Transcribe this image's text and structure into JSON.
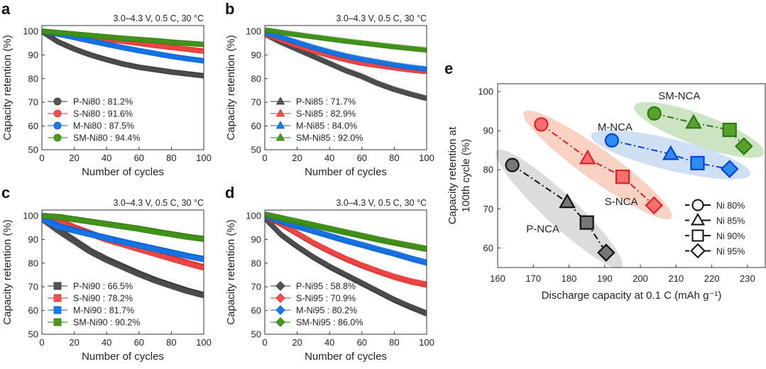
{
  "figure": {
    "condition_label": "3.0–4.3 V, 0.5 C, 30 °C",
    "colors": {
      "P": "#555555",
      "S": "#f05050",
      "M": "#1a7be8",
      "SM": "#4a9a1e",
      "P_fill_e": "#777777",
      "S_fill_e": "#f77070",
      "M_fill_e": "#2b8ef0",
      "SM_fill_e": "#5aa02a",
      "P_halo": "#dcdcdc",
      "S_halo": "#f9d2c4",
      "M_halo": "#cfe0f5",
      "SM_halo": "#cde4c2"
    }
  },
  "chart_data": [
    {
      "panel": "a",
      "type": "line",
      "title": "3.0–4.3 V, 0.5 C, 30 °C",
      "xlabel": "Number of cycles",
      "ylabel": "Capacity retention (%)",
      "xlim": [
        0,
        100
      ],
      "ylim": [
        50,
        100
      ],
      "xticks": [
        "0",
        "20",
        "40",
        "60",
        "80",
        "100"
      ],
      "yticks": [
        "50",
        "60",
        "70",
        "80",
        "90",
        "100"
      ],
      "marker": "circle",
      "legend_position": "bottom-left",
      "series": [
        {
          "name": "P-Ni80 : 81.2%",
          "key": "P",
          "x": [
            0,
            10,
            20,
            30,
            40,
            50,
            60,
            70,
            80,
            90,
            100
          ],
          "y": [
            100,
            95.5,
            92.5,
            90.0,
            88.0,
            86.2,
            84.8,
            83.8,
            82.8,
            82.0,
            81.2
          ]
        },
        {
          "name": "S-Ni80 : 91.6%",
          "key": "S",
          "x": [
            0,
            10,
            20,
            30,
            40,
            50,
            60,
            70,
            80,
            90,
            100
          ],
          "y": [
            100,
            99.2,
            98.4,
            97.5,
            96.6,
            95.8,
            94.9,
            94.0,
            93.2,
            92.4,
            91.6
          ]
        },
        {
          "name": "M-Ni80 : 87.5%",
          "key": "M",
          "x": [
            0,
            10,
            20,
            30,
            40,
            50,
            60,
            70,
            80,
            90,
            100
          ],
          "y": [
            100,
            98.8,
            97.4,
            95.9,
            94.5,
            93.1,
            91.8,
            90.6,
            89.4,
            88.4,
            87.5
          ]
        },
        {
          "name": "SM-Ni80 : 94.4%",
          "key": "SM",
          "x": [
            0,
            10,
            20,
            30,
            40,
            50,
            60,
            70,
            80,
            90,
            100
          ],
          "y": [
            100,
            99.4,
            98.8,
            98.2,
            97.6,
            97.0,
            96.5,
            96.0,
            95.4,
            94.9,
            94.4
          ]
        }
      ]
    },
    {
      "panel": "b",
      "type": "line",
      "title": "3.0–4.3 V, 0.5 C, 30 °C",
      "xlabel": "Number of cycles",
      "ylabel": "Capacity retention (%)",
      "xlim": [
        0,
        100
      ],
      "ylim": [
        50,
        100
      ],
      "xticks": [
        "0",
        "20",
        "40",
        "60",
        "80",
        "100"
      ],
      "yticks": [
        "50",
        "60",
        "70",
        "80",
        "90",
        "100"
      ],
      "marker": "triangle",
      "legend_position": "bottom-left",
      "series": [
        {
          "name": "P-Ni85 : 71.7%",
          "key": "P",
          "x": [
            0,
            10,
            20,
            30,
            40,
            50,
            60,
            70,
            80,
            90,
            100
          ],
          "y": [
            99,
            95.5,
            92.5,
            89.5,
            86.5,
            83.5,
            81.0,
            78.0,
            75.5,
            73.5,
            71.7
          ]
        },
        {
          "name": "S-Ni85 : 82.9%",
          "key": "S",
          "x": [
            0,
            10,
            20,
            30,
            40,
            50,
            60,
            70,
            80,
            90,
            100
          ],
          "y": [
            99,
            96.5,
            94.0,
            91.8,
            89.8,
            88.0,
            86.5,
            85.5,
            84.5,
            83.6,
            82.9
          ]
        },
        {
          "name": "M-Ni85 : 84.0%",
          "key": "M",
          "x": [
            0,
            10,
            20,
            30,
            40,
            50,
            60,
            70,
            80,
            90,
            100
          ],
          "y": [
            99.5,
            97.5,
            95.3,
            93.2,
            91.3,
            89.6,
            88.2,
            87.0,
            85.8,
            84.8,
            84.0
          ]
        },
        {
          "name": "SM-Ni85 : 92.0%",
          "key": "SM",
          "x": [
            0,
            10,
            20,
            30,
            40,
            50,
            60,
            70,
            80,
            90,
            100
          ],
          "y": [
            100.5,
            99.5,
            98.5,
            97.6,
            96.7,
            95.8,
            95.0,
            94.2,
            93.4,
            92.7,
            92.0
          ]
        }
      ]
    },
    {
      "panel": "c",
      "type": "line",
      "title": "3.0–4.3 V, 0.5 C, 30 °C",
      "xlabel": "Number of cycles",
      "ylabel": "Capacity retention (%)",
      "xlim": [
        0,
        100
      ],
      "ylim": [
        50,
        100
      ],
      "xticks": [
        "0",
        "20",
        "40",
        "60",
        "80",
        "100"
      ],
      "yticks": [
        "50",
        "60",
        "70",
        "80",
        "90",
        "100"
      ],
      "marker": "square",
      "legend_position": "bottom-left",
      "series": [
        {
          "name": "P-Ni90 : 66.5%",
          "key": "P",
          "x": [
            0,
            10,
            20,
            30,
            40,
            50,
            60,
            70,
            80,
            90,
            100
          ],
          "y": [
            99,
            94.0,
            89.5,
            85.0,
            81.5,
            78.5,
            75.5,
            72.8,
            70.5,
            68.3,
            66.5
          ]
        },
        {
          "name": "S-Ni90 : 78.2%",
          "key": "S",
          "x": [
            0,
            10,
            20,
            30,
            40,
            50,
            60,
            70,
            80,
            90,
            100
          ],
          "y": [
            99.5,
            98.0,
            95.0,
            92.5,
            90.0,
            88.0,
            86.0,
            84.0,
            82.0,
            80.0,
            78.2
          ]
        },
        {
          "name": "M-Ni90 : 81.7%",
          "key": "M",
          "x": [
            0,
            10,
            20,
            30,
            40,
            50,
            60,
            70,
            80,
            90,
            100
          ],
          "y": [
            99,
            95.5,
            93.8,
            92.2,
            90.6,
            89.0,
            87.5,
            86.0,
            84.5,
            83.0,
            81.7
          ]
        },
        {
          "name": "SM-Ni90 : 90.2%",
          "key": "SM",
          "x": [
            0,
            10,
            20,
            30,
            40,
            50,
            60,
            70,
            80,
            90,
            100
          ],
          "y": [
            100,
            99.5,
            98.5,
            97.5,
            96.5,
            95.5,
            94.5,
            93.3,
            92.2,
            91.1,
            90.2
          ]
        }
      ]
    },
    {
      "panel": "d",
      "type": "line",
      "title": "3.0–4.3 V, 0.5 C, 30 °C",
      "xlabel": "Number of cycles",
      "ylabel": "Capacity retention (%)",
      "xlim": [
        0,
        100
      ],
      "ylim": [
        50,
        100
      ],
      "xticks": [
        "0",
        "20",
        "40",
        "60",
        "80",
        "100"
      ],
      "yticks": [
        "50",
        "60",
        "70",
        "80",
        "90",
        "100"
      ],
      "marker": "diamond",
      "legend_position": "bottom-left",
      "series": [
        {
          "name": "P-Ni95 : 58.8%",
          "key": "P",
          "x": [
            0,
            10,
            20,
            30,
            40,
            50,
            60,
            70,
            80,
            90,
            100
          ],
          "y": [
            99,
            92.0,
            87.0,
            82.5,
            78.5,
            75.0,
            71.5,
            68.0,
            64.5,
            61.5,
            58.8
          ]
        },
        {
          "name": "S-Ni95 : 70.9%",
          "key": "S",
          "x": [
            0,
            10,
            20,
            30,
            40,
            50,
            60,
            70,
            80,
            90,
            100
          ],
          "y": [
            100,
            96.5,
            92.5,
            88.5,
            85.0,
            81.8,
            79.0,
            76.5,
            74.2,
            72.3,
            70.9
          ]
        },
        {
          "name": "M-Ni95 : 80.2%",
          "key": "M",
          "x": [
            0,
            10,
            20,
            30,
            40,
            50,
            60,
            70,
            80,
            90,
            100
          ],
          "y": [
            100,
            97.5,
            95.5,
            93.5,
            91.5,
            89.5,
            87.7,
            85.8,
            84.0,
            82.0,
            80.2
          ]
        },
        {
          "name": "SM-Ni95 : 86.0%",
          "key": "SM",
          "x": [
            0,
            10,
            20,
            30,
            40,
            50,
            60,
            70,
            80,
            90,
            100
          ],
          "y": [
            100.5,
            99.0,
            97.5,
            96.0,
            94.5,
            93.0,
            91.5,
            90.0,
            88.6,
            87.3,
            86.0
          ]
        }
      ]
    },
    {
      "panel": "e",
      "type": "scatter",
      "xlabel": "Discharge capacity at 0.1 C (mAh g⁻¹)",
      "ylabel_line1": "Capacity retention at",
      "ylabel_line2": "100th cycle (%)",
      "xlim": [
        160,
        235
      ],
      "ylim": [
        55,
        102
      ],
      "xticks": [
        "160",
        "170",
        "180",
        "190",
        "200",
        "210",
        "220",
        "230"
      ],
      "yticks": [
        "60",
        "70",
        "80",
        "90",
        "100"
      ],
      "legend_position": "bottom-right",
      "marker_legend": [
        {
          "label": "Ni 80%",
          "marker": "circle"
        },
        {
          "label": "Ni 85%",
          "marker": "triangle"
        },
        {
          "label": "Ni 90%",
          "marker": "square"
        },
        {
          "label": "Ni 95%",
          "marker": "diamond"
        }
      ],
      "series": [
        {
          "name": "P-NCA",
          "key": "P",
          "x": [
            164.1,
            179.5,
            185.0,
            190.4
          ],
          "y": [
            81.2,
            71.7,
            66.5,
            58.8
          ]
        },
        {
          "name": "S-NCA",
          "key": "S",
          "x": [
            172.2,
            185.2,
            195.0,
            203.8
          ],
          "y": [
            91.6,
            82.9,
            78.2,
            70.9
          ]
        },
        {
          "name": "M-NCA",
          "key": "M",
          "x": [
            192.0,
            208.5,
            216.0,
            225.0
          ],
          "y": [
            87.5,
            84.0,
            81.7,
            80.2
          ]
        },
        {
          "name": "SM-NCA",
          "key": "SM",
          "x": [
            203.9,
            214.9,
            225.0,
            229.0
          ],
          "y": [
            94.4,
            92.0,
            90.2,
            86.0
          ]
        }
      ],
      "group_labels": [
        {
          "text": "P-NCA",
          "x": 168,
          "y": 64
        },
        {
          "text": "S-NCA",
          "x": 190,
          "y": 71
        },
        {
          "text": "M-NCA",
          "x": 188,
          "y": 90
        },
        {
          "text": "SM-NCA",
          "x": 205,
          "y": 98
        }
      ]
    }
  ],
  "panel_letters": [
    "a",
    "b",
    "c",
    "d",
    "e"
  ]
}
